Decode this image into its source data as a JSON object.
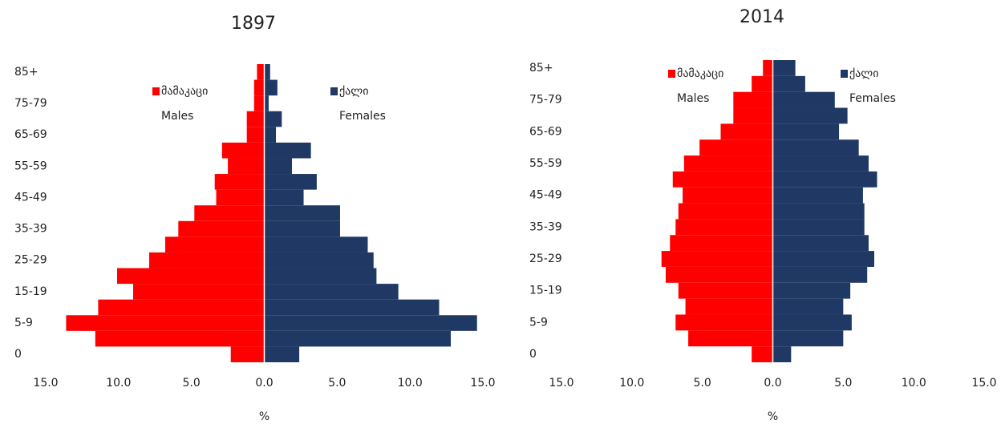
{
  "chart_data": [
    {
      "type": "pyramid",
      "title": "1897",
      "xlabel": "%",
      "categories": [
        "0",
        null,
        "5-9",
        null,
        "15-19",
        null,
        "25-29",
        null,
        "35-39",
        null,
        "45-49",
        null,
        "55-59",
        null,
        "65-69",
        null,
        "75-79",
        null,
        "85+"
      ],
      "series": [
        {
          "name": "მამაკაცი",
          "sublabel": "Males",
          "color": "#ff0000",
          "values": [
            -2.3,
            -11.6,
            -13.6,
            -11.4,
            -9.0,
            -10.1,
            -7.9,
            -6.8,
            -5.9,
            -4.8,
            -3.3,
            -3.4,
            -2.5,
            -2.9,
            -1.2,
            -1.2,
            -0.7,
            -0.7,
            -0.5
          ]
        },
        {
          "name": "ქალი",
          "sublabel": "Females",
          "color": "#1f3864",
          "values": [
            2.4,
            12.8,
            14.6,
            12.0,
            9.2,
            7.7,
            7.5,
            7.1,
            5.2,
            5.2,
            2.7,
            3.6,
            1.9,
            3.2,
            0.8,
            1.2,
            0.3,
            0.9,
            0.4
          ]
        }
      ],
      "xlim": [
        -15,
        15
      ],
      "xticks": [
        {
          "value": -15,
          "label": "15.0"
        },
        {
          "value": -10,
          "label": "10.0"
        },
        {
          "value": -5,
          "label": "5.0"
        },
        {
          "value": 0,
          "label": "0.0"
        },
        {
          "value": 5,
          "label": "5.0"
        },
        {
          "value": 10,
          "label": "10.0"
        },
        {
          "value": 15,
          "label": "15.0"
        }
      ]
    },
    {
      "type": "pyramid",
      "title": "2014",
      "xlabel": "%",
      "categories": [
        "0",
        null,
        "5-9",
        null,
        "15-19",
        null,
        "25-29",
        null,
        "35-39",
        null,
        "45-49",
        null,
        "55-59",
        null,
        "65-69",
        null,
        "75-79",
        null,
        "85+"
      ],
      "series": [
        {
          "name": "მამაკაცი",
          "sublabel": "Males",
          "color": "#ff0000",
          "values": [
            -1.5,
            -6.0,
            -6.9,
            -6.2,
            -6.7,
            -7.6,
            -7.9,
            -7.3,
            -6.9,
            -6.7,
            -6.4,
            -7.1,
            -6.3,
            -5.2,
            -3.7,
            -2.8,
            -2.8,
            -1.5,
            -0.7
          ]
        },
        {
          "name": "ქალი",
          "sublabel": "Females",
          "color": "#1f3864",
          "values": [
            1.3,
            5.0,
            5.6,
            5.0,
            5.5,
            6.7,
            7.2,
            6.8,
            6.5,
            6.5,
            6.4,
            7.4,
            6.8,
            6.1,
            4.7,
            5.3,
            4.4,
            2.3,
            1.6
          ]
        }
      ],
      "xlim": [
        -15,
        15
      ],
      "xticks": [
        {
          "value": -15,
          "label": "15.0"
        },
        {
          "value": -10,
          "label": "10.0"
        },
        {
          "value": -5,
          "label": "5.0"
        },
        {
          "value": 0,
          "label": "0.0"
        },
        {
          "value": 5,
          "label": "5.0"
        },
        {
          "value": 10,
          "label": "10.0"
        },
        {
          "value": 15,
          "label": "15.0"
        }
      ]
    }
  ]
}
